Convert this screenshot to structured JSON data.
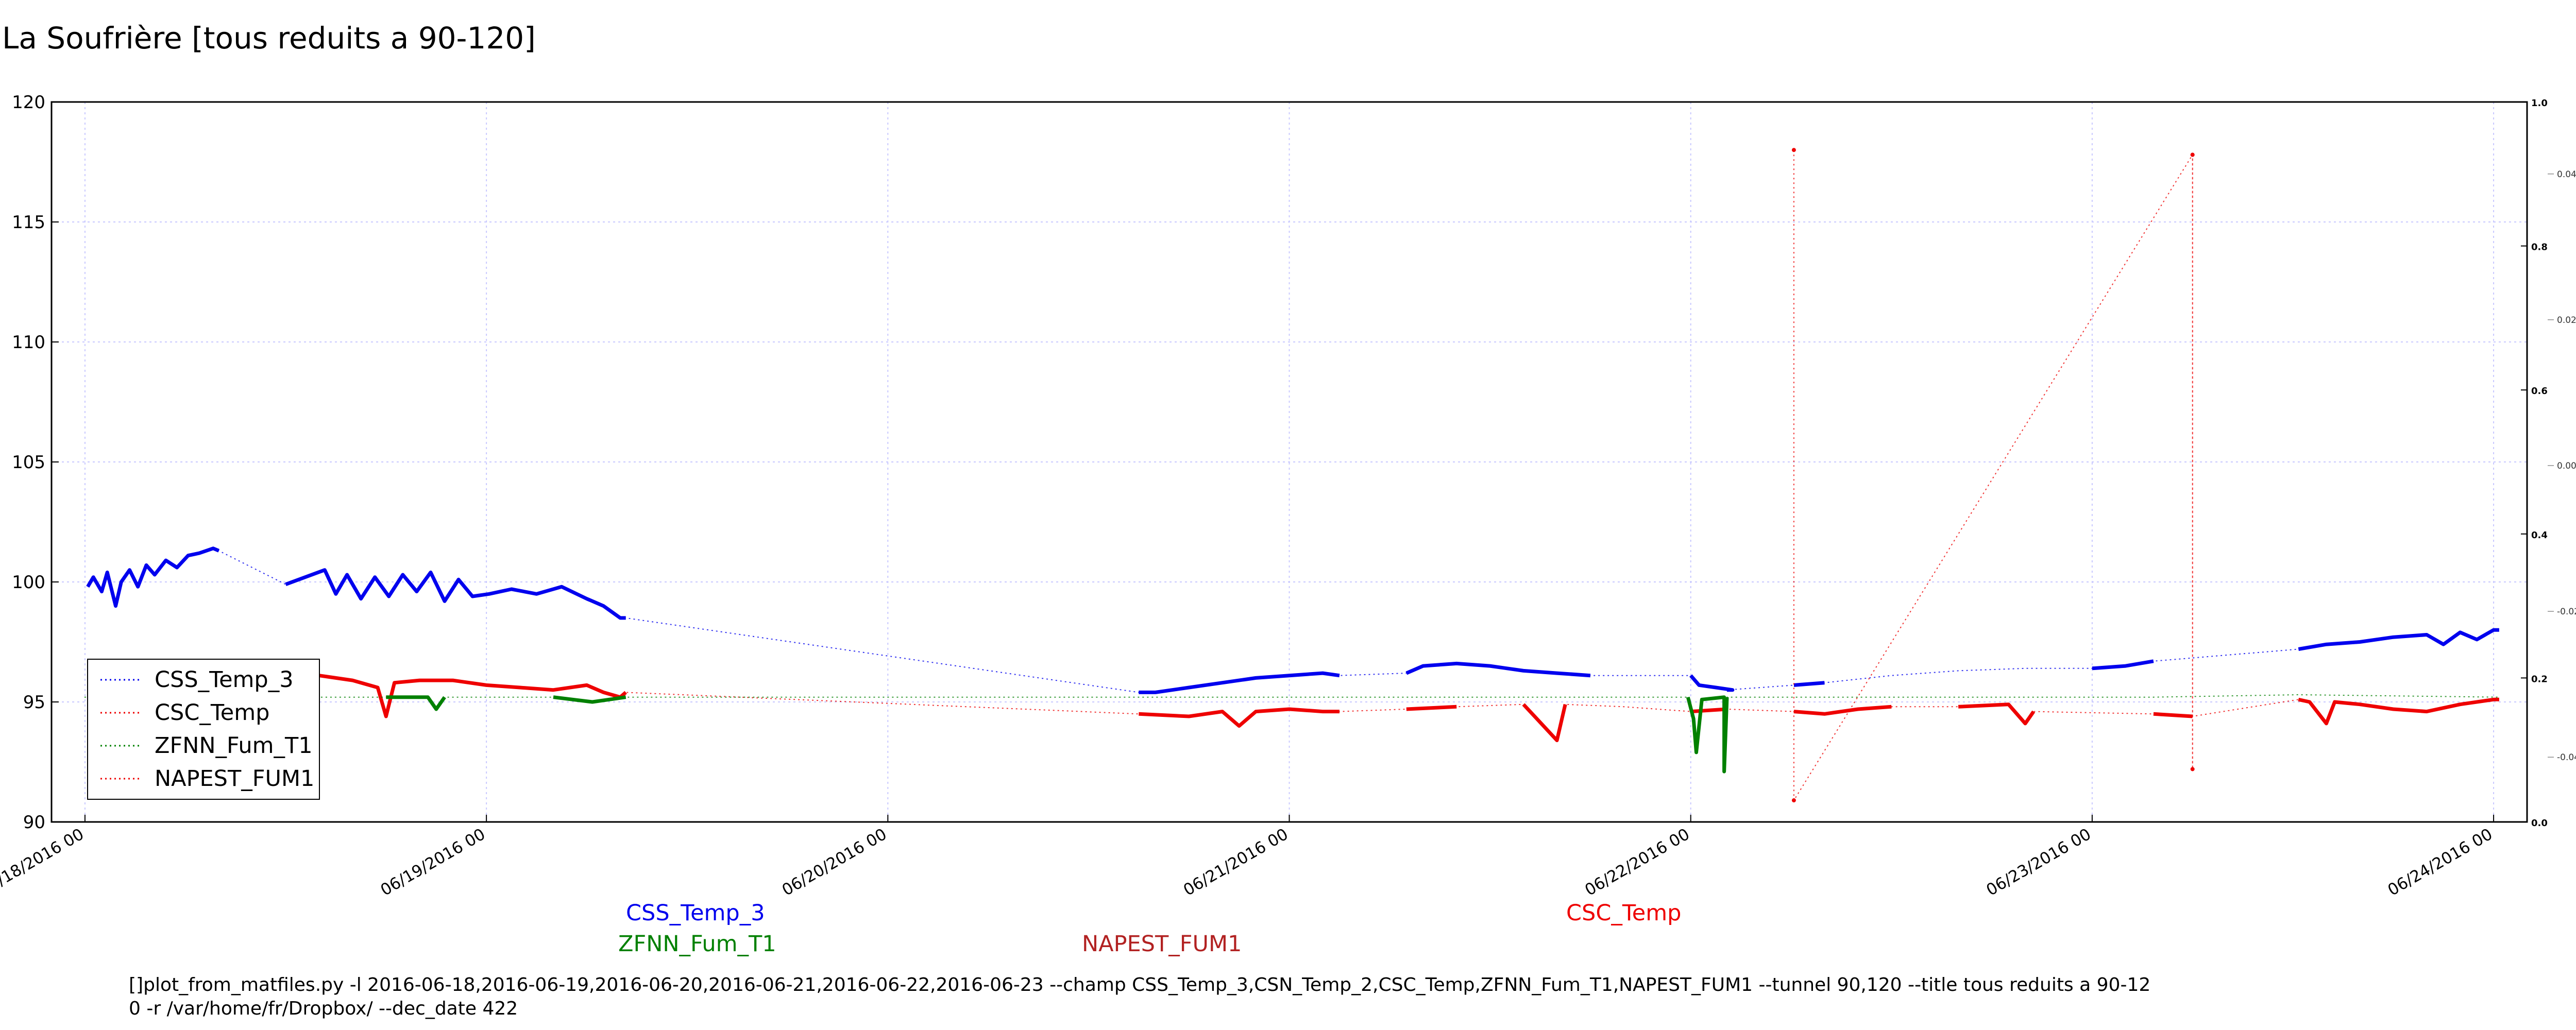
{
  "title": "La Soufrière [tous reduits a 90-120]",
  "colors": {
    "css": "#0000ee",
    "csc": "#ee0000",
    "zfnn": "#008000",
    "napest": "#ee0000",
    "grid": "#c8c8ff",
    "label_napest": "#b22222"
  },
  "series_labels": [
    {
      "text": "CSS_Temp_3",
      "color": "#0000ee"
    },
    {
      "text": "ZFNN_Fum_T1",
      "color": "#008000"
    },
    {
      "text": "NAPEST_FUM1",
      "color": "#b22222"
    },
    {
      "text": "CSC_Temp",
      "color": "#ee0000"
    }
  ],
  "footer": {
    "line1": "[]plot_from_matfiles.py -l 2016-06-18,2016-06-19,2016-06-20,2016-06-21,2016-06-22,2016-06-23 --champ CSS_Temp_3,CSN_Temp_2,CSC_Temp,ZFNN_Fum_T1,NAPEST_FUM1 --tunnel 90,120 --title tous reduits a 90-12",
    "line2": "0 -r /var/home/fr/Dropbox/ --dec_date 422"
  },
  "chart_data": {
    "type": "line",
    "title": "La Soufrière [tous reduits a 90-120]",
    "xlabel": "",
    "ylabel": "",
    "ylim": [
      90,
      120
    ],
    "y_ticks": [
      90,
      95,
      100,
      105,
      110,
      115,
      120
    ],
    "xlim": [
      "2016-06-17 22:00",
      "2016-06-24 02:00"
    ],
    "x_ticks": [
      {
        "x": "2016-06-18 00:00",
        "label": "06/18/2016 00"
      },
      {
        "x": "2016-06-19 00:00",
        "label": "06/19/2016 00"
      },
      {
        "x": "2016-06-20 00:00",
        "label": "06/20/2016 00"
      },
      {
        "x": "2016-06-21 00:00",
        "label": "06/21/2016 00"
      },
      {
        "x": "2016-06-22 00:00",
        "label": "06/22/2016 00"
      },
      {
        "x": "2016-06-23 00:00",
        "label": "06/23/2016 00"
      },
      {
        "x": "2016-06-24 00:00",
        "label": "06/24/2016 00"
      }
    ],
    "y2_ticks_outer": [
      "0.0",
      "0.2",
      "0.4",
      "0.6",
      "0.8",
      "1.0"
    ],
    "y2_ticks_inner": [
      "-0.04",
      "-0.02",
      "0.00",
      "0.02",
      "0.04"
    ],
    "grid": true,
    "legend_position": "lower-left",
    "series": [
      {
        "name": "CSS_Temp_3",
        "color": "#0000ee",
        "points": [
          [
            "2016-06-18 00:10",
            99.8
          ],
          [
            "2016-06-18 00:30",
            100.2
          ],
          [
            "2016-06-18 01:00",
            99.6
          ],
          [
            "2016-06-18 01:20",
            100.4
          ],
          [
            "2016-06-18 01:50",
            99.0
          ],
          [
            "2016-06-18 02:10",
            100.0
          ],
          [
            "2016-06-18 02:40",
            100.5
          ],
          [
            "2016-06-18 03:10",
            99.8
          ],
          [
            "2016-06-18 03:40",
            100.7
          ],
          [
            "2016-06-18 04:10",
            100.3
          ],
          [
            "2016-06-18 04:50",
            100.9
          ],
          [
            "2016-06-18 05:30",
            100.6
          ],
          [
            "2016-06-18 06:10",
            101.1
          ],
          [
            "2016-06-18 06:50",
            101.2
          ],
          [
            "2016-06-18 07:40",
            101.4
          ],
          [
            "2016-06-18 08:00",
            101.3
          ],
          [
            "2016-06-18 12:00",
            99.9
          ],
          [
            "2016-06-18 14:20",
            100.5
          ],
          [
            "2016-06-18 15:00",
            99.5
          ],
          [
            "2016-06-18 15:40",
            100.3
          ],
          [
            "2016-06-18 16:30",
            99.3
          ],
          [
            "2016-06-18 17:20",
            100.2
          ],
          [
            "2016-06-18 18:10",
            99.4
          ],
          [
            "2016-06-18 19:00",
            100.3
          ],
          [
            "2016-06-18 19:50",
            99.6
          ],
          [
            "2016-06-18 20:40",
            100.4
          ],
          [
            "2016-06-18 21:30",
            99.2
          ],
          [
            "2016-06-18 22:20",
            100.1
          ],
          [
            "2016-06-18 23:10",
            99.4
          ],
          [
            "2016-06-19 00:10",
            99.5
          ],
          [
            "2016-06-19 01:30",
            99.7
          ],
          [
            "2016-06-19 03:00",
            99.5
          ],
          [
            "2016-06-19 04:30",
            99.8
          ],
          [
            "2016-06-19 06:00",
            99.3
          ],
          [
            "2016-06-19 07:00",
            99.0
          ],
          [
            "2016-06-19 08:00",
            98.5
          ],
          [
            "2016-06-19 08:20",
            98.5
          ],
          [
            "2016-06-20 15:00",
            95.4
          ],
          [
            "2016-06-20 16:00",
            95.4
          ],
          [
            "2016-06-20 18:00",
            95.6
          ],
          [
            "2016-06-20 20:00",
            95.8
          ],
          [
            "2016-06-20 22:00",
            96.0
          ],
          [
            "2016-06-21 00:00",
            96.1
          ],
          [
            "2016-06-21 02:00",
            96.2
          ],
          [
            "2016-06-21 03:00",
            96.1
          ],
          [
            "2016-06-21 07:00",
            96.2
          ],
          [
            "2016-06-21 08:00",
            96.5
          ],
          [
            "2016-06-21 10:00",
            96.6
          ],
          [
            "2016-06-21 12:00",
            96.5
          ],
          [
            "2016-06-21 14:00",
            96.3
          ],
          [
            "2016-06-21 16:00",
            96.2
          ],
          [
            "2016-06-21 18:00",
            96.1
          ],
          [
            "2016-06-22 00:00",
            96.1
          ],
          [
            "2016-06-22 00:30",
            95.7
          ],
          [
            "2016-06-22 01:30",
            95.6
          ],
          [
            "2016-06-22 02:30",
            95.5
          ],
          [
            "2016-06-22 02:10",
            95.5
          ],
          [
            "2016-06-22 06:10",
            95.7
          ],
          [
            "2016-06-22 08:00",
            95.8
          ],
          [
            "2016-06-22 12:00",
            96.1
          ],
          [
            "2016-06-22 16:00",
            96.3
          ],
          [
            "2016-06-22 20:00",
            96.4
          ],
          [
            "2016-06-23 00:00",
            96.4
          ],
          [
            "2016-06-23 02:00",
            96.5
          ],
          [
            "2016-06-23 03:40",
            96.7
          ],
          [
            "2016-06-23 12:20",
            97.2
          ],
          [
            "2016-06-23 14:00",
            97.4
          ],
          [
            "2016-06-23 16:00",
            97.5
          ],
          [
            "2016-06-23 18:00",
            97.7
          ],
          [
            "2016-06-23 20:00",
            97.8
          ],
          [
            "2016-06-23 21:00",
            97.4
          ],
          [
            "2016-06-23 22:00",
            97.9
          ],
          [
            "2016-06-23 23:00",
            97.6
          ],
          [
            "2016-06-24 00:00",
            98.0
          ],
          [
            "2016-06-24 00:20",
            98.0
          ]
        ]
      },
      {
        "name": "CSC_Temp",
        "color": "#ee0000",
        "points": [
          [
            "2016-06-18 00:10",
            96.0
          ],
          [
            "2016-06-18 04:00",
            96.1
          ],
          [
            "2016-06-18 08:00",
            96.2
          ],
          [
            "2016-06-18 10:00",
            96.3
          ],
          [
            "2016-06-18 14:00",
            96.1
          ],
          [
            "2016-06-18 16:00",
            95.9
          ],
          [
            "2016-06-18 17:30",
            95.6
          ],
          [
            "2016-06-18 18:00",
            94.4
          ],
          [
            "2016-06-18 18:30",
            95.8
          ],
          [
            "2016-06-18 20:00",
            95.9
          ],
          [
            "2016-06-18 22:00",
            95.9
          ],
          [
            "2016-06-19 00:00",
            95.7
          ],
          [
            "2016-06-19 02:00",
            95.6
          ],
          [
            "2016-06-19 04:00",
            95.5
          ],
          [
            "2016-06-19 06:00",
            95.7
          ],
          [
            "2016-06-19 07:00",
            95.4
          ],
          [
            "2016-06-19 08:00",
            95.2
          ],
          [
            "2016-06-19 08:20",
            95.4
          ],
          [
            "2016-06-20 15:00",
            94.5
          ],
          [
            "2016-06-20 18:00",
            94.4
          ],
          [
            "2016-06-20 20:00",
            94.6
          ],
          [
            "2016-06-20 21:00",
            94.0
          ],
          [
            "2016-06-20 22:00",
            94.6
          ],
          [
            "2016-06-21 00:00",
            94.7
          ],
          [
            "2016-06-21 02:00",
            94.6
          ],
          [
            "2016-06-21 03:00",
            94.6
          ],
          [
            "2016-06-21 07:00",
            94.7
          ],
          [
            "2016-06-21 10:00",
            94.8
          ],
          [
            "2016-06-21 14:00",
            94.9
          ],
          [
            "2016-06-21 16:00",
            93.4
          ],
          [
            "2016-06-21 16:30",
            94.9
          ],
          [
            "2016-06-21 20:00",
            94.8
          ],
          [
            "2016-06-22 00:00",
            94.6
          ],
          [
            "2016-06-22 02:10",
            94.7
          ],
          [
            "2016-06-22 06:10",
            94.6
          ],
          [
            "2016-06-22 08:00",
            94.5
          ],
          [
            "2016-06-22 10:00",
            94.7
          ],
          [
            "2016-06-22 12:00",
            94.8
          ],
          [
            "2016-06-22 16:00",
            94.8
          ],
          [
            "2016-06-22 19:00",
            94.9
          ],
          [
            "2016-06-22 20:00",
            94.1
          ],
          [
            "2016-06-22 20:30",
            94.6
          ],
          [
            "2016-06-23 03:40",
            94.5
          ],
          [
            "2016-06-23 06:00",
            94.4
          ],
          [
            "2016-06-23 12:20",
            95.1
          ],
          [
            "2016-06-23 13:00",
            95.0
          ],
          [
            "2016-06-23 14:00",
            94.1
          ],
          [
            "2016-06-23 14:30",
            95.0
          ],
          [
            "2016-06-23 16:00",
            94.9
          ],
          [
            "2016-06-23 18:00",
            94.7
          ],
          [
            "2016-06-23 20:00",
            94.6
          ],
          [
            "2016-06-23 22:00",
            94.9
          ],
          [
            "2016-06-24 00:00",
            95.1
          ],
          [
            "2016-06-24 00:20",
            95.1
          ]
        ]
      },
      {
        "name": "ZFNN_Fum_T1",
        "color": "#008000",
        "points": [
          [
            "2016-06-17 23:58",
            95.2
          ],
          [
            "2016-06-18 06:00",
            95.2
          ],
          [
            "2016-06-18 12:00",
            95.2
          ],
          [
            "2016-06-18 18:00",
            95.2
          ],
          [
            "2016-06-18 20:30",
            95.2
          ],
          [
            "2016-06-18 21:00",
            94.7
          ],
          [
            "2016-06-18 21:30",
            95.2
          ],
          [
            "2016-06-19 04:00",
            95.2
          ],
          [
            "2016-06-19 06:20",
            95.0
          ],
          [
            "2016-06-19 08:20",
            95.2
          ],
          [
            "2016-06-20 15:00",
            95.2
          ],
          [
            "2016-06-21 03:00",
            95.2
          ],
          [
            "2016-06-21 07:00",
            95.2
          ],
          [
            "2016-06-21 23:50",
            95.2
          ],
          [
            "2016-06-22 00:10",
            94.3
          ],
          [
            "2016-06-22 00:20",
            92.9
          ],
          [
            "2016-06-22 00:40",
            95.1
          ],
          [
            "2016-06-22 02:00",
            95.2
          ],
          [
            "2016-06-22 02:00",
            92.1
          ],
          [
            "2016-06-22 02:10",
            95.2
          ],
          [
            "2016-06-22 06:10",
            95.2
          ],
          [
            "2016-06-23 03:40",
            95.2
          ],
          [
            "2016-06-23 12:20",
            95.3
          ],
          [
            "2016-06-24 00:20",
            95.2
          ]
        ]
      },
      {
        "name": "NAPEST_FUM1",
        "color": "#ee0000",
        "points": [
          [
            "2016-06-22 06:10",
            118.0
          ],
          [
            "2016-06-22 06:10",
            90.9
          ],
          [
            "2016-06-23 06:00",
            117.8
          ],
          [
            "2016-06-23 06:00",
            92.2
          ],
          [
            "2016-06-23 06:00",
            117.8
          ]
        ]
      }
    ]
  }
}
